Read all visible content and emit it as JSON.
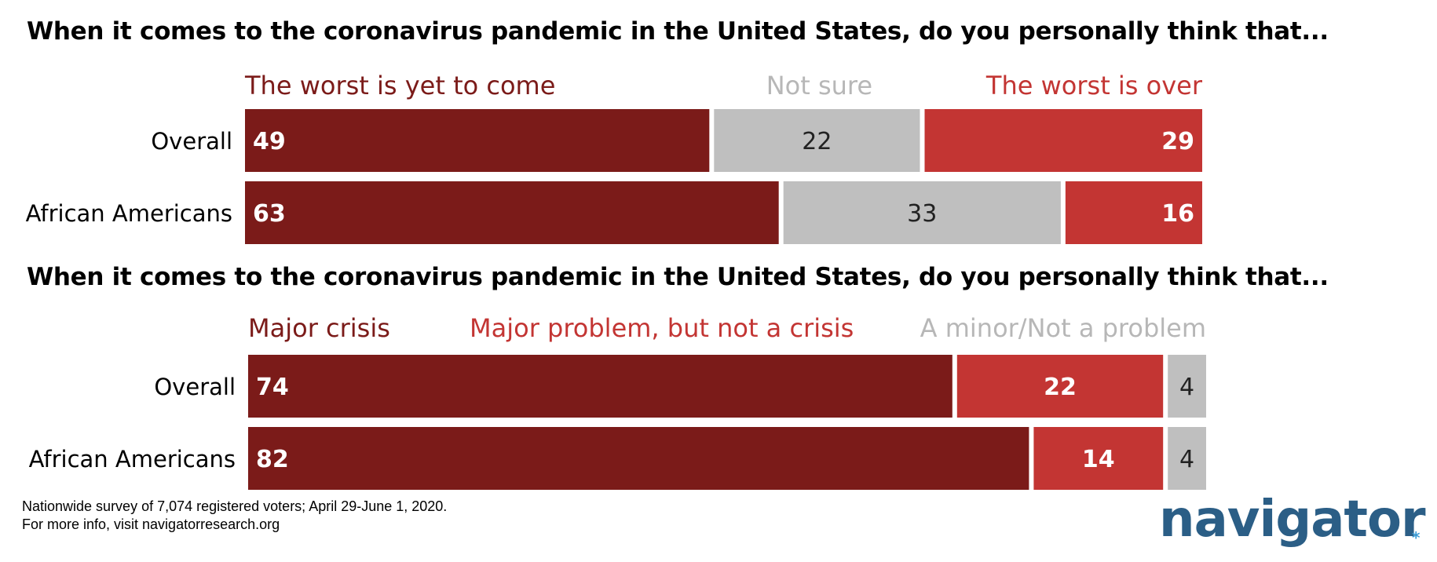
{
  "colors": {
    "dark_red": "#7b1b19",
    "red": "#c33533",
    "gray": "#bfbfbf",
    "gray_label": "#b7b7b7",
    "logo_blue": "#2b5e86",
    "logo_star": "#3a9bd5"
  },
  "footnote": {
    "line1": "Nationwide survey of 7,074 registered voters; April 29-June 1, 2020.",
    "line2": "For more info, visit navigatorresearch.org"
  },
  "logo": {
    "text": "navigator",
    "mark": "*"
  },
  "chart_data": [
    {
      "type": "bar",
      "orientation": "horizontal-stacked",
      "title": "When it comes to the coronavirus pandemic in the United States, do you personally think that...",
      "categories": [
        "Overall",
        "African Americans"
      ],
      "series": [
        {
          "name": "The worst is yet to come",
          "values": [
            49,
            63
          ],
          "color": "#7b1b19",
          "label_color": "#7b1b19",
          "value_color": "#ffffff",
          "label_align": "start",
          "value_align": "start"
        },
        {
          "name": "Not sure",
          "values": [
            22,
            33
          ],
          "color": "#bfbfbf",
          "label_color": "#b7b7b7",
          "value_color": "#222222",
          "label_align": "middle",
          "value_align": "middle"
        },
        {
          "name": "The worst is over",
          "values": [
            29,
            16
          ],
          "color": "#c33533",
          "label_color": "#c33533",
          "value_color": "#ffffff",
          "label_align": "end",
          "value_align": "end"
        }
      ]
    },
    {
      "type": "bar",
      "orientation": "horizontal-stacked",
      "title": "When it comes to the coronavirus pandemic in the United States, do you personally think that...",
      "categories": [
        "Overall",
        "African Americans"
      ],
      "series": [
        {
          "name": "Major crisis",
          "values": [
            74,
            82
          ],
          "color": "#7b1b19",
          "label_color": "#7b1b19",
          "value_color": "#ffffff",
          "label_align": "start",
          "value_align": "start"
        },
        {
          "name": "Major problem, but not a crisis",
          "values": [
            22,
            14
          ],
          "color": "#c33533",
          "label_color": "#c33533",
          "value_color": "#ffffff",
          "label_align": "start",
          "value_align": "middle"
        },
        {
          "name": "A minor/Not a problem",
          "values": [
            4,
            4
          ],
          "color": "#bfbfbf",
          "label_color": "#b7b7b7",
          "value_color": "#222222",
          "label_align": "end",
          "value_align": "middle"
        }
      ]
    }
  ]
}
